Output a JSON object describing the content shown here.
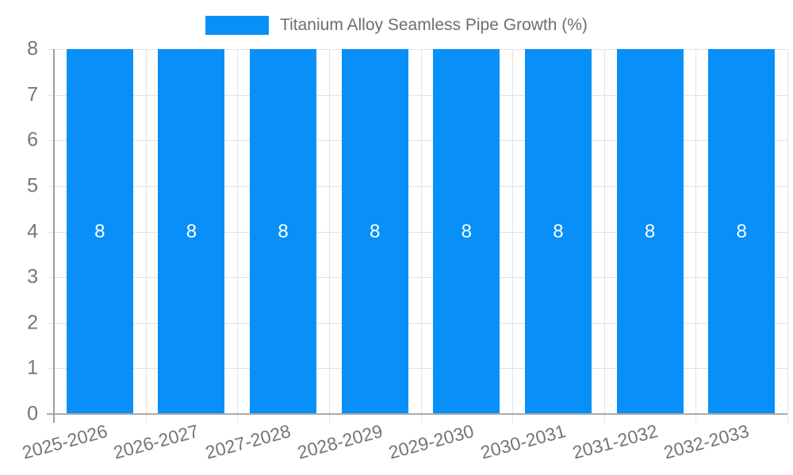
{
  "legend": {
    "title": "Titanium Alloy Seamless Pipe Growth (%)"
  },
  "chart_data": {
    "type": "bar",
    "title": "Titanium Alloy Seamless Pipe Growth (%)",
    "categories": [
      "2025-2026",
      "2026-2027",
      "2027-2028",
      "2028-2029",
      "2029-2030",
      "2030-2031",
      "2031-2032",
      "2032-2033"
    ],
    "values": [
      8,
      8,
      8,
      8,
      8,
      8,
      8,
      8
    ],
    "bar_labels": [
      "8",
      "8",
      "8",
      "8",
      "8",
      "8",
      "8",
      "8"
    ],
    "xlabel": "",
    "ylabel": "",
    "ylim": [
      0,
      8
    ],
    "yticks": [
      0,
      1,
      2,
      3,
      4,
      5,
      6,
      7,
      8
    ],
    "grid": true,
    "legend_position": "top",
    "x_tick_rotation_deg": -15,
    "colors": {
      "bar": "#0890F8",
      "bar_label": "#FFFFFF",
      "legend_swatch": "#0890F8",
      "title_text": "#6E6E6E",
      "axis_text": "#757575",
      "gridline": "#E3E3E3",
      "axis_line": "#9E9E9E",
      "baseline": "#ABABAB"
    }
  }
}
